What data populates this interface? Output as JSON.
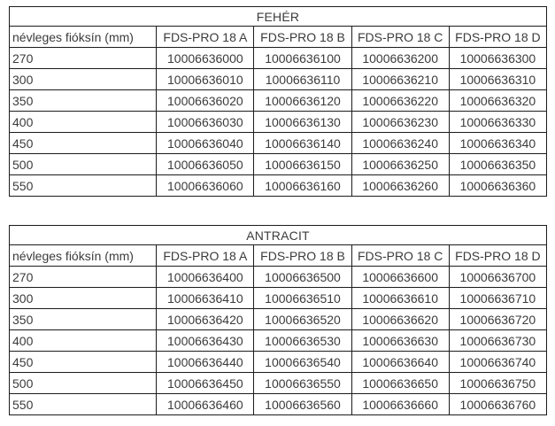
{
  "tables": [
    {
      "title": "FEHÉR",
      "row_header_label": "névleges fióksín (mm)",
      "columns": [
        "FDS-PRO 18 A",
        "FDS-PRO 18 B",
        "FDS-PRO 18 C",
        "FDS-PRO 18 D"
      ],
      "rows": [
        {
          "size": "270",
          "codes": [
            "10006636000",
            "10006636100",
            "10006636200",
            "10006636300"
          ]
        },
        {
          "size": "300",
          "codes": [
            "10006636010",
            "10006636110",
            "10006636210",
            "10006636310"
          ]
        },
        {
          "size": "350",
          "codes": [
            "10006636020",
            "10006636120",
            "10006636220",
            "10006636320"
          ]
        },
        {
          "size": "400",
          "codes": [
            "10006636030",
            "10006636130",
            "10006636230",
            "10006636330"
          ]
        },
        {
          "size": "450",
          "codes": [
            "10006636040",
            "10006636140",
            "10006636240",
            "10006636340"
          ]
        },
        {
          "size": "500",
          "codes": [
            "10006636050",
            "10006636150",
            "10006636250",
            "10006636350"
          ]
        },
        {
          "size": "550",
          "codes": [
            "10006636060",
            "10006636160",
            "10006636260",
            "10006636360"
          ]
        }
      ]
    },
    {
      "title": "ANTRACIT",
      "row_header_label": "névleges fióksín (mm)",
      "columns": [
        "FDS-PRO 18 A",
        "FDS-PRO 18 B",
        "FDS-PRO 18 C",
        "FDS-PRO 18 D"
      ],
      "rows": [
        {
          "size": "270",
          "codes": [
            "10006636400",
            "10006636500",
            "10006636600",
            "10006636700"
          ]
        },
        {
          "size": "300",
          "codes": [
            "10006636410",
            "10006636510",
            "10006636610",
            "10006636710"
          ]
        },
        {
          "size": "350",
          "codes": [
            "10006636420",
            "10006636520",
            "10006636620",
            "10006636720"
          ]
        },
        {
          "size": "400",
          "codes": [
            "10006636430",
            "10006636530",
            "10006636630",
            "10006636730"
          ]
        },
        {
          "size": "450",
          "codes": [
            "10006636440",
            "10006636540",
            "10006636640",
            "10006636740"
          ]
        },
        {
          "size": "500",
          "codes": [
            "10006636450",
            "10006636550",
            "10006636650",
            "10006636750"
          ]
        },
        {
          "size": "550",
          "codes": [
            "10006636460",
            "10006636560",
            "10006636660",
            "10006636760"
          ]
        }
      ]
    },
    {
      "_comment_colors": ""
    }
  ],
  "colors": {
    "border": "#1c1c1c",
    "text": "#3b3b3b",
    "background": "#ffffff"
  }
}
